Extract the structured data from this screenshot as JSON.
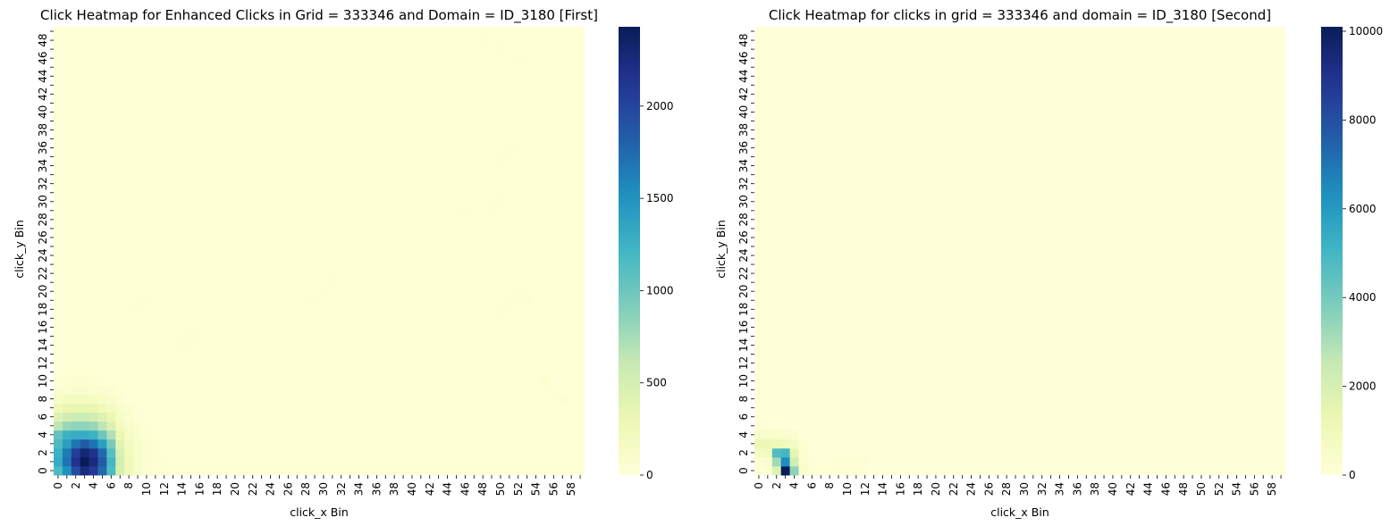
{
  "chart_data": [
    {
      "type": "heatmap",
      "title": "Click Heatmap for Enhanced Clicks in Grid = 333346 and Domain = ID_3180 [First]",
      "xlabel": "click_x Bin",
      "ylabel": "click_y Bin",
      "x_bins": 60,
      "y_bins": 50,
      "x_tick_labels": [
        "0",
        "2",
        "4",
        "6",
        "8",
        "10",
        "12",
        "14",
        "16",
        "18",
        "20",
        "22",
        "24",
        "26",
        "28",
        "30",
        "32",
        "34",
        "36",
        "38",
        "40",
        "42",
        "44",
        "46",
        "48",
        "50",
        "52",
        "54",
        "56",
        "58"
      ],
      "y_tick_labels": [
        "0",
        "2",
        "4",
        "6",
        "8",
        "10",
        "12",
        "14",
        "16",
        "18",
        "20",
        "22",
        "24",
        "26",
        "28",
        "30",
        "32",
        "34",
        "36",
        "38",
        "40",
        "42",
        "44",
        "46",
        "48"
      ],
      "colorbar": {
        "min": 0,
        "max": 2430,
        "ticks": [
          "0",
          "500",
          "1000",
          "1500",
          "2000"
        ],
        "tick_values": [
          0,
          500,
          1000,
          1500,
          2000
        ]
      },
      "colormap": "YlGnBu",
      "background_value": 20,
      "cells": [
        [
          0,
          0,
          1150
        ],
        [
          1,
          0,
          1500
        ],
        [
          2,
          0,
          1950
        ],
        [
          3,
          0,
          2250
        ],
        [
          4,
          0,
          2100
        ],
        [
          5,
          0,
          1750
        ],
        [
          6,
          0,
          1150
        ],
        [
          7,
          0,
          480
        ],
        [
          8,
          0,
          240
        ],
        [
          9,
          0,
          110
        ],
        [
          10,
          0,
          60
        ],
        [
          11,
          0,
          40
        ],
        [
          12,
          0,
          30
        ],
        [
          0,
          1,
          1300
        ],
        [
          1,
          1,
          1700
        ],
        [
          2,
          1,
          2150
        ],
        [
          3,
          1,
          2430
        ],
        [
          4,
          1,
          2250
        ],
        [
          5,
          1,
          1850
        ],
        [
          6,
          1,
          1200
        ],
        [
          7,
          1,
          500
        ],
        [
          8,
          1,
          250
        ],
        [
          9,
          1,
          120
        ],
        [
          10,
          1,
          65
        ],
        [
          11,
          1,
          45
        ],
        [
          12,
          1,
          30
        ],
        [
          0,
          2,
          1250
        ],
        [
          1,
          2,
          1650
        ],
        [
          2,
          2,
          2050
        ],
        [
          3,
          2,
          2300
        ],
        [
          4,
          2,
          2150
        ],
        [
          5,
          2,
          1750
        ],
        [
          6,
          2,
          1100
        ],
        [
          7,
          2,
          460
        ],
        [
          8,
          2,
          230
        ],
        [
          9,
          2,
          110
        ],
        [
          10,
          2,
          60
        ],
        [
          11,
          2,
          40
        ],
        [
          0,
          3,
          1150
        ],
        [
          1,
          3,
          1400
        ],
        [
          2,
          3,
          1700
        ],
        [
          3,
          3,
          1850
        ],
        [
          4,
          3,
          1700
        ],
        [
          5,
          3,
          1400
        ],
        [
          6,
          3,
          950
        ],
        [
          7,
          3,
          400
        ],
        [
          8,
          3,
          200
        ],
        [
          9,
          3,
          100
        ],
        [
          10,
          3,
          55
        ],
        [
          11,
          3,
          35
        ],
        [
          0,
          4,
          1050
        ],
        [
          1,
          4,
          1250
        ],
        [
          2,
          4,
          1300
        ],
        [
          3,
          4,
          1300
        ],
        [
          4,
          4,
          1250
        ],
        [
          5,
          4,
          1000
        ],
        [
          6,
          4,
          700
        ],
        [
          7,
          4,
          300
        ],
        [
          8,
          4,
          150
        ],
        [
          9,
          4,
          80
        ],
        [
          10,
          4,
          45
        ],
        [
          0,
          5,
          650
        ],
        [
          1,
          5,
          800
        ],
        [
          2,
          5,
          850
        ],
        [
          3,
          5,
          850
        ],
        [
          4,
          5,
          800
        ],
        [
          5,
          5,
          650
        ],
        [
          6,
          5,
          450
        ],
        [
          7,
          5,
          220
        ],
        [
          8,
          5,
          110
        ],
        [
          9,
          5,
          60
        ],
        [
          0,
          6,
          420
        ],
        [
          1,
          6,
          520
        ],
        [
          2,
          6,
          560
        ],
        [
          3,
          6,
          560
        ],
        [
          4,
          6,
          520
        ],
        [
          5,
          6,
          420
        ],
        [
          6,
          6,
          300
        ],
        [
          7,
          6,
          150
        ],
        [
          8,
          6,
          80
        ],
        [
          9,
          6,
          45
        ],
        [
          0,
          7,
          260
        ],
        [
          1,
          7,
          320
        ],
        [
          2,
          7,
          350
        ],
        [
          3,
          7,
          350
        ],
        [
          4,
          7,
          320
        ],
        [
          5,
          7,
          260
        ],
        [
          6,
          7,
          190
        ],
        [
          7,
          7,
          100
        ],
        [
          8,
          7,
          55
        ],
        [
          0,
          8,
          140
        ],
        [
          1,
          8,
          170
        ],
        [
          2,
          8,
          190
        ],
        [
          3,
          8,
          190
        ],
        [
          4,
          8,
          170
        ],
        [
          5,
          8,
          140
        ],
        [
          6,
          8,
          100
        ],
        [
          7,
          8,
          60
        ],
        [
          0,
          9,
          70
        ],
        [
          1,
          9,
          85
        ],
        [
          2,
          9,
          95
        ],
        [
          3,
          9,
          95
        ],
        [
          4,
          9,
          85
        ],
        [
          5,
          9,
          70
        ],
        [
          6,
          9,
          50
        ],
        [
          0,
          10,
          40
        ],
        [
          1,
          10,
          45
        ],
        [
          2,
          10,
          50
        ],
        [
          3,
          10,
          50
        ],
        [
          4,
          10,
          45
        ],
        [
          55,
          10,
          55
        ],
        [
          57,
          8,
          50
        ],
        [
          50,
          18,
          45
        ],
        [
          51,
          19,
          45
        ],
        [
          52,
          20,
          40
        ],
        [
          53,
          19,
          40
        ],
        [
          49,
          29,
          45
        ],
        [
          50,
          30,
          40
        ],
        [
          46,
          29,
          40
        ],
        [
          29,
          19,
          40
        ],
        [
          30,
          20,
          40
        ],
        [
          31,
          21,
          38
        ],
        [
          48,
          48,
          40
        ],
        [
          50,
          47,
          38
        ],
        [
          52,
          46,
          38
        ],
        [
          14,
          14,
          40
        ],
        [
          15,
          15,
          35
        ],
        [
          9,
          18,
          38
        ],
        [
          10,
          19,
          35
        ],
        [
          50,
          35,
          40
        ],
        [
          51,
          36,
          38
        ]
      ]
    },
    {
      "type": "heatmap",
      "title": "Click Heatmap for clicks in grid = 333346 and domain = ID_3180 [Second]",
      "xlabel": "click_x Bin",
      "ylabel": "click_y Bin",
      "x_bins": 60,
      "y_bins": 50,
      "x_tick_labels": [
        "0",
        "2",
        "4",
        "6",
        "8",
        "10",
        "12",
        "14",
        "16",
        "18",
        "20",
        "22",
        "24",
        "26",
        "28",
        "30",
        "32",
        "34",
        "36",
        "38",
        "40",
        "42",
        "44",
        "46",
        "48",
        "50",
        "52",
        "54",
        "56",
        "58"
      ],
      "y_tick_labels": [
        "0",
        "2",
        "4",
        "6",
        "8",
        "10",
        "12",
        "14",
        "16",
        "18",
        "20",
        "22",
        "24",
        "26",
        "28",
        "30",
        "32",
        "34",
        "36",
        "38",
        "40",
        "42",
        "44",
        "46",
        "48"
      ],
      "colorbar": {
        "min": 0,
        "max": 10100,
        "ticks": [
          "0",
          "2000",
          "4000",
          "6000",
          "8000",
          "10000"
        ],
        "tick_values": [
          0,
          2000,
          4000,
          6000,
          8000,
          10000
        ]
      },
      "colormap": "YlGnBu",
      "background_value": 0,
      "cells": [
        [
          0,
          0,
          60
        ],
        [
          1,
          0,
          120
        ],
        [
          2,
          0,
          1800
        ],
        [
          3,
          0,
          10100
        ],
        [
          4,
          0,
          3500
        ],
        [
          5,
          0,
          400
        ],
        [
          6,
          0,
          150
        ],
        [
          7,
          0,
          80
        ],
        [
          8,
          0,
          60
        ],
        [
          9,
          0,
          100
        ],
        [
          10,
          0,
          150
        ],
        [
          11,
          0,
          120
        ],
        [
          12,
          0,
          80
        ],
        [
          0,
          1,
          150
        ],
        [
          1,
          1,
          300
        ],
        [
          2,
          1,
          3200
        ],
        [
          3,
          1,
          6400
        ],
        [
          4,
          1,
          2200
        ],
        [
          5,
          1,
          350
        ],
        [
          6,
          1,
          120
        ],
        [
          7,
          1,
          80
        ],
        [
          8,
          1,
          60
        ],
        [
          9,
          1,
          140
        ],
        [
          10,
          1,
          200
        ],
        [
          11,
          1,
          150
        ],
        [
          12,
          1,
          100
        ],
        [
          0,
          2,
          600
        ],
        [
          1,
          2,
          900
        ],
        [
          2,
          2,
          4700
        ],
        [
          3,
          2,
          5000
        ],
        [
          4,
          2,
          1500
        ],
        [
          5,
          2,
          250
        ],
        [
          6,
          2,
          80
        ],
        [
          0,
          3,
          1200
        ],
        [
          1,
          3,
          1200
        ],
        [
          2,
          3,
          1100
        ],
        [
          3,
          3,
          900
        ],
        [
          4,
          3,
          700
        ],
        [
          5,
          3,
          200
        ],
        [
          0,
          4,
          500
        ],
        [
          1,
          4,
          450
        ],
        [
          2,
          4,
          400
        ],
        [
          3,
          4,
          350
        ],
        [
          4,
          4,
          280
        ],
        [
          5,
          4,
          80
        ],
        [
          0,
          5,
          120
        ],
        [
          1,
          5,
          120
        ],
        [
          2,
          5,
          100
        ],
        [
          3,
          5,
          80
        ]
      ]
    }
  ]
}
